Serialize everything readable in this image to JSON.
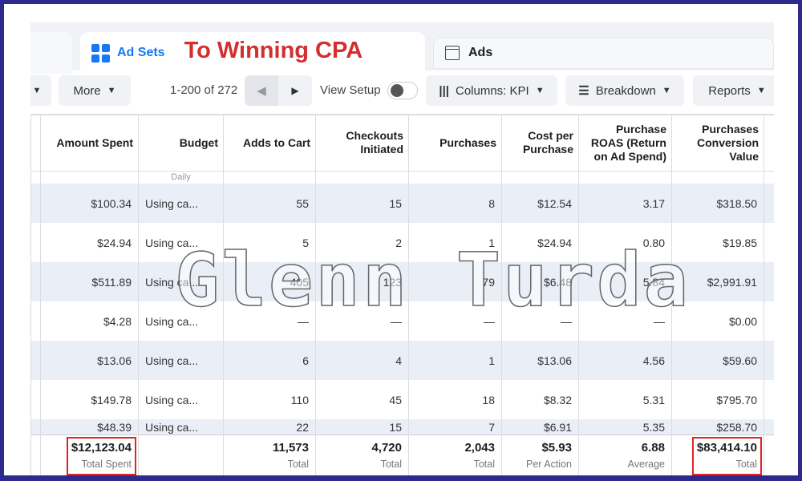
{
  "tabs": {
    "ad_sets": "Ad Sets",
    "ads": "Ads"
  },
  "headline": "To Winning CPA",
  "watermark": "Glenn Turda",
  "toolbar": {
    "more": "More",
    "pagination": "1-200 of 272",
    "view_setup": "View Setup",
    "view_setup_on": false,
    "columns": "Columns: KPI",
    "breakdown": "Breakdown",
    "reports": "Reports"
  },
  "table": {
    "headers": [
      "Amount Spent",
      "Budget",
      "Adds to Cart",
      "Checkouts Initiated",
      "Purchases",
      "Cost per Purchase",
      "Purchase ROAS (Return on Ad Spend)",
      "Purchases Conversion Value"
    ],
    "budget_sub": "Daily",
    "rows": [
      [
        "$100.34",
        "Using ca...",
        "55",
        "15",
        "8",
        "$12.54",
        "3.17",
        "$318.50"
      ],
      [
        "$24.94",
        "Using ca...",
        "5",
        "2",
        "1",
        "$24.94",
        "0.80",
        "$19.85"
      ],
      [
        "$511.89",
        "Using ca...",
        "405",
        "123",
        "79",
        "$6.48",
        "5.84",
        "$2,991.91"
      ],
      [
        "$4.28",
        "Using ca...",
        "—",
        "—",
        "—",
        "—",
        "—",
        "$0.00"
      ],
      [
        "$13.06",
        "Using ca...",
        "6",
        "4",
        "1",
        "$13.06",
        "4.56",
        "$59.60"
      ],
      [
        "$149.78",
        "Using ca...",
        "110",
        "45",
        "18",
        "$8.32",
        "5.31",
        "$795.70"
      ],
      [
        "$48.39",
        "Using ca...",
        "22",
        "15",
        "7",
        "$6.91",
        "5.35",
        "$258.70"
      ]
    ],
    "totals": {
      "amount": "$12,123.04",
      "amount_label": "Total Spent",
      "adds": "11,573",
      "adds_label": "Total",
      "checkouts": "4,720",
      "checkouts_label": "Total",
      "purchases": "2,043",
      "purchases_label": "Total",
      "cpp": "$5.93",
      "cpp_label": "Per Action",
      "roas": "6.88",
      "roas_label": "Average",
      "value": "$83,414.10",
      "value_label": "Total"
    }
  },
  "colors": {
    "frame": "#2e2a8c",
    "headline": "#d32f2f",
    "accent": "#1877f2",
    "highlight_box": "#e02424",
    "row_tint": "#e9eef7"
  }
}
